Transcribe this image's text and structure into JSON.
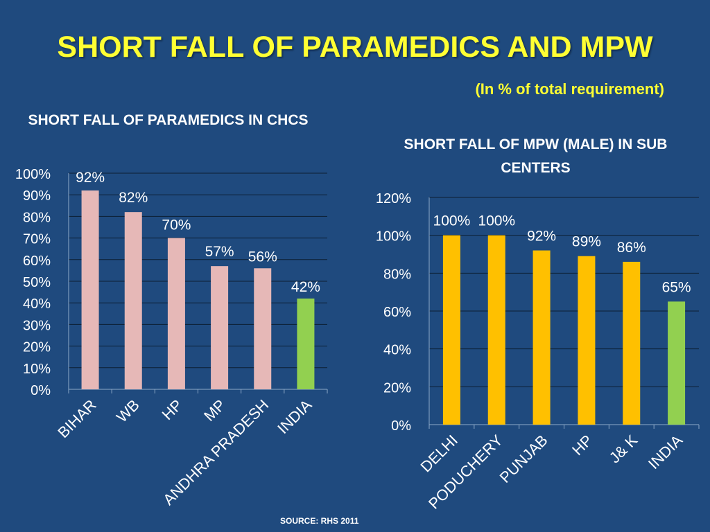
{
  "title": "SHORT FALL OF PARAMEDICS AND MPW",
  "subtitle": "(In % of total requirement)",
  "source": "SOURCE: RHS 2011",
  "colors": {
    "background": "#1f4a7e",
    "title": "#ffff33",
    "bar_left": "#e6b8b7",
    "bar_right": "#ffc000",
    "bar_highlight": "#92d050",
    "gridline": "#0d1f33",
    "text": "#ffffff"
  },
  "chart_data": [
    {
      "type": "bar",
      "title": "SHORT FALL OF PARAMEDICS IN CHCS",
      "categories": [
        "BIHAR",
        "WB",
        "HP",
        "MP",
        "ANDHRA PRADESH",
        "INDIA"
      ],
      "values": [
        92,
        82,
        70,
        57,
        56,
        42
      ],
      "data_labels": [
        "92%",
        "82%",
        "70%",
        "57%",
        "56%",
        "42%"
      ],
      "ylim": [
        0,
        100
      ],
      "yticks": [
        "0%",
        "10%",
        "20%",
        "30%",
        "40%",
        "50%",
        "60%",
        "70%",
        "80%",
        "90%",
        "100%"
      ],
      "grid": true,
      "highlight_category": "INDIA"
    },
    {
      "type": "bar",
      "title": "SHORT FALL OF MPW (MALE) IN SUB CENTERS",
      "categories": [
        "DELHI",
        "PODUCHERY",
        "PUNJAB",
        "HP",
        "J& K",
        "INDIA"
      ],
      "values": [
        100,
        100,
        92,
        89,
        86,
        65
      ],
      "data_labels": [
        "100%",
        "100%",
        "92%",
        "89%",
        "86%",
        "65%"
      ],
      "ylim": [
        0,
        120
      ],
      "yticks": [
        "0%",
        "20%",
        "40%",
        "60%",
        "80%",
        "100%",
        "120%"
      ],
      "grid": true,
      "highlight_category": "INDIA"
    }
  ]
}
